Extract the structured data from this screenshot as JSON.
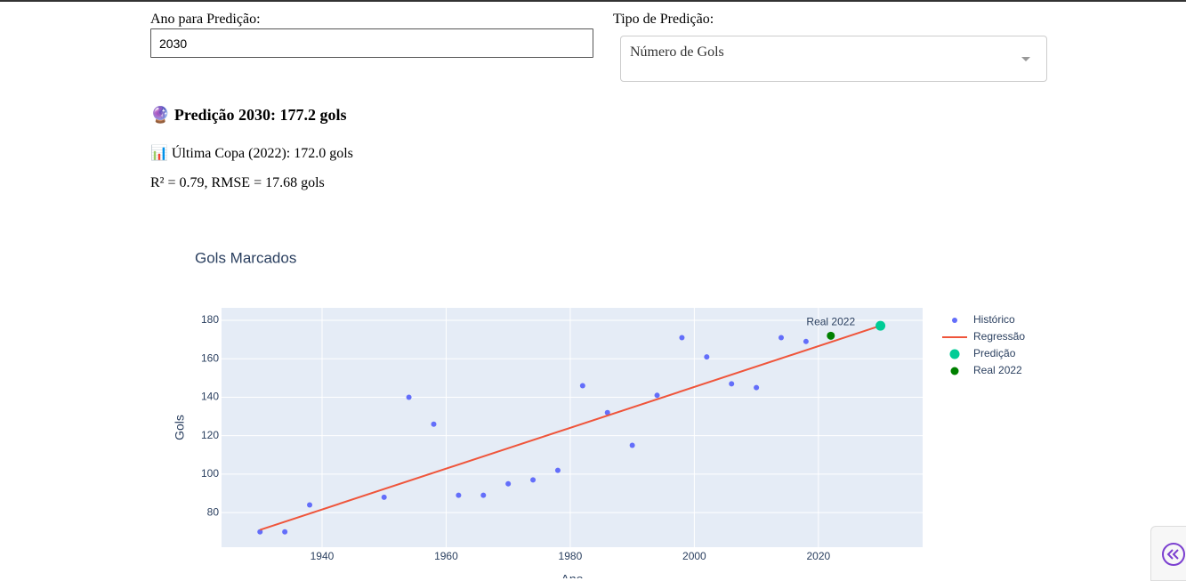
{
  "form": {
    "year_label": "Ano para Predição:",
    "year_value": "2030",
    "type_label": "Tipo de Predição:",
    "type_value": "Número de Gols"
  },
  "results": {
    "prediction": "🔮 Predição 2030: 177.2 gols",
    "last_cup": "📊 Última Copa (2022): 172.0 gols",
    "metrics": "R² = 0.79, RMSE = 17.68 gols"
  },
  "chart_data": {
    "type": "scatter",
    "title": "Gols Marcados",
    "x_label": "Ano",
    "y_label": "Gols",
    "xlim": [
      1923.8,
      2036.8
    ],
    "ylim": [
      62,
      186.5
    ],
    "xticks": [
      1940,
      1960,
      1980,
      2000,
      2020
    ],
    "yticks": [
      80,
      100,
      120,
      140,
      160,
      180
    ],
    "grid": true,
    "background": "#e5ecf6",
    "legend": "right",
    "series": [
      {
        "name": "Histórico",
        "color": "#636efa",
        "mode": "markers",
        "marker_size": 6,
        "x": [
          1930,
          1934,
          1938,
          1950,
          1954,
          1958,
          1962,
          1966,
          1970,
          1974,
          1978,
          1982,
          1986,
          1990,
          1994,
          1998,
          2002,
          2006,
          2010,
          2014,
          2018
        ],
        "y": [
          70,
          70,
          84,
          88,
          140,
          126,
          89,
          89,
          95,
          97,
          102,
          146,
          132,
          115,
          141,
          171,
          161,
          147,
          145,
          171,
          169
        ]
      },
      {
        "name": "Regressão",
        "color": "#ef553b",
        "mode": "lines",
        "x": [
          1930,
          2030
        ],
        "y": [
          71,
          177.2
        ]
      },
      {
        "name": "Predição",
        "color": "#00cc96",
        "mode": "markers",
        "marker_size": 11,
        "x": [
          2030
        ],
        "y": [
          177.2
        ]
      },
      {
        "name": "Real 2022",
        "color": "#008000",
        "mode": "markers",
        "marker_size": 9,
        "x": [
          2022
        ],
        "y": [
          172
        ]
      }
    ],
    "annotations": [
      {
        "text": "Real 2022",
        "x": 2022,
        "y": 172
      }
    ]
  }
}
